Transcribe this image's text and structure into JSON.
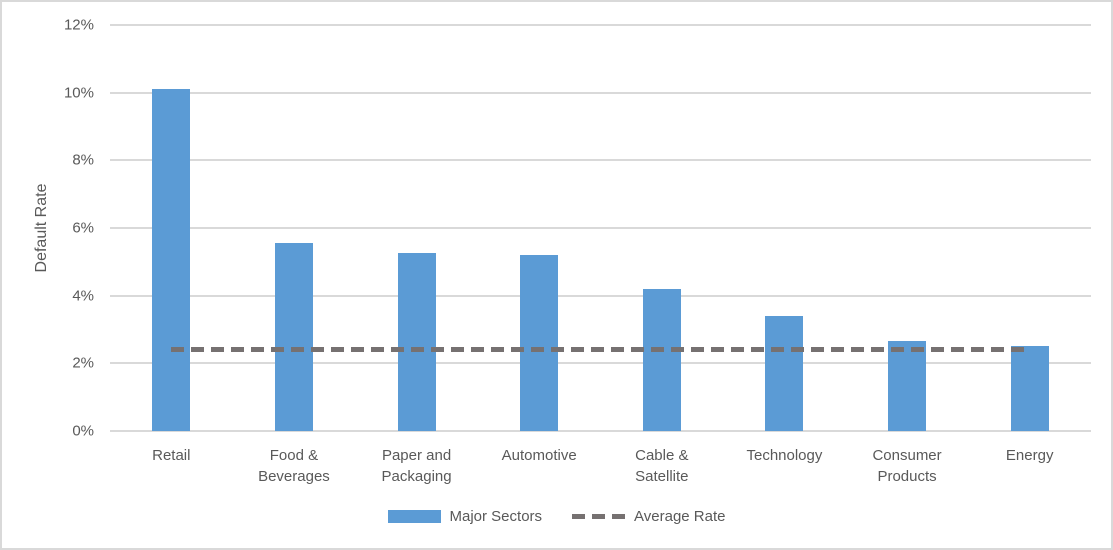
{
  "colors": {
    "bar": "#5b9bd5",
    "average_line": "#767171",
    "gridline": "#d9d9d9",
    "axis_text": "#595959",
    "border": "#d9d9d9",
    "background": "#ffffff"
  },
  "chart_data": {
    "type": "bar",
    "title": "",
    "categories": [
      "Retail",
      "Food & Beverages",
      "Paper and Packaging",
      "Automotive",
      "Cable & Satellite",
      "Technology",
      "Consumer Products",
      "Energy"
    ],
    "series": [
      {
        "name": "Major Sectors",
        "type": "bar",
        "color": "#5b9bd5",
        "values": [
          10.1,
          5.55,
          5.25,
          5.2,
          4.2,
          3.4,
          2.65,
          2.5
        ]
      },
      {
        "name": "Average Rate",
        "type": "line",
        "style": "dashed",
        "color": "#767171",
        "value": 2.4
      }
    ],
    "xlabel": "",
    "ylabel": "Default Rate",
    "ylim": [
      0,
      12
    ],
    "ytick_step": 2,
    "ytick_suffix": "%",
    "grid": true,
    "legend_position": "bottom"
  },
  "legend": {
    "bar_label": "Major Sectors",
    "line_label": "Average Rate"
  }
}
